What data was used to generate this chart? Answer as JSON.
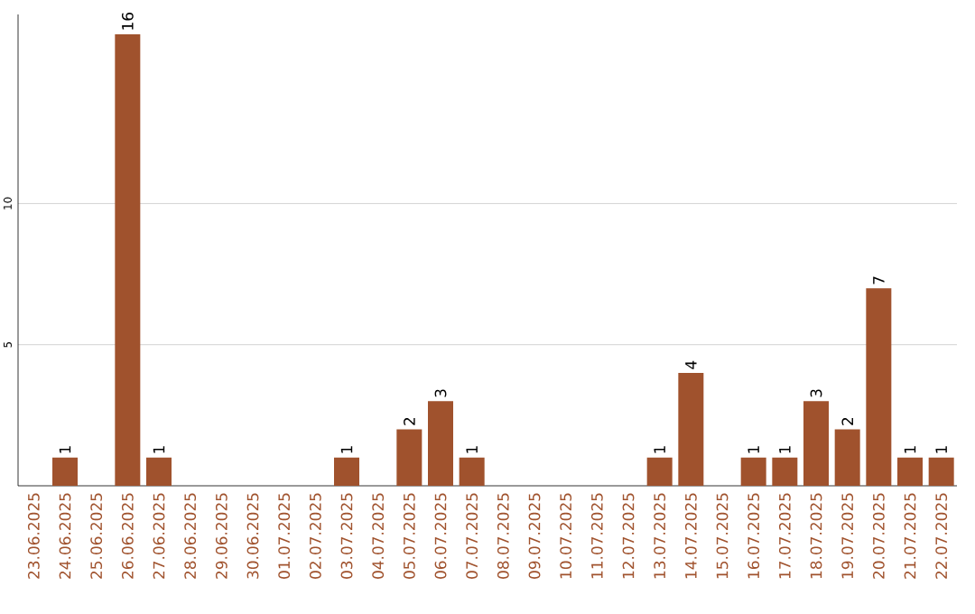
{
  "chart_data": {
    "type": "bar",
    "categories": [
      "23.06.2025",
      "24.06.2025",
      "25.06.2025",
      "26.06.2025",
      "27.06.2025",
      "28.06.2025",
      "29.06.2025",
      "30.06.2025",
      "01.07.2025",
      "02.07.2025",
      "03.07.2025",
      "04.07.2025",
      "05.07.2025",
      "06.07.2025",
      "07.07.2025",
      "08.07.2025",
      "09.07.2025",
      "10.07.2025",
      "11.07.2025",
      "12.07.2025",
      "13.07.2025",
      "14.07.2025",
      "15.07.2025",
      "16.07.2025",
      "17.07.2025",
      "18.07.2025",
      "19.07.2025",
      "20.07.2025",
      "21.07.2025",
      "22.07.2025"
    ],
    "values": [
      0,
      1,
      0,
      16,
      1,
      0,
      0,
      0,
      0,
      0,
      1,
      0,
      2,
      3,
      1,
      0,
      0,
      0,
      0,
      0,
      1,
      4,
      0,
      1,
      1,
      3,
      2,
      7,
      1,
      1
    ],
    "value_labels": [
      null,
      "1",
      null,
      "16",
      "1",
      null,
      null,
      null,
      null,
      null,
      "1",
      null,
      "2",
      "3",
      "1",
      null,
      null,
      null,
      null,
      null,
      "1",
      "4",
      null,
      "1",
      "1",
      "3",
      "2",
      "7",
      "1",
      "1"
    ],
    "color": "#a0522d",
    "ylim": [
      0,
      16.7
    ],
    "yticks": [
      5,
      10
    ],
    "grid": "y"
  }
}
